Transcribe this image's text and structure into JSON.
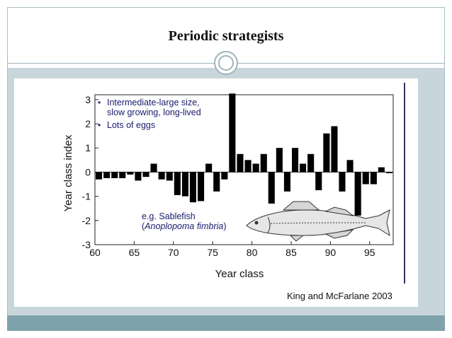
{
  "slide": {
    "title": "Periodic strategists",
    "credit": "King and McFarlane 2003"
  },
  "chart_data": {
    "type": "bar",
    "xlabel": "Year class",
    "ylabel": "Year class index",
    "xlim": [
      60,
      98
    ],
    "ylim": [
      -3,
      3.2
    ],
    "xticks": [
      "60",
      "65",
      "70",
      "75",
      "80",
      "85",
      "90",
      "95"
    ],
    "yticks": [
      "3",
      "2",
      "1",
      "0",
      "-1",
      "-2",
      "-3"
    ],
    "categories": [
      60,
      61,
      62,
      63,
      64,
      65,
      66,
      67,
      68,
      69,
      70,
      71,
      72,
      73,
      74,
      75,
      76,
      77,
      78,
      79,
      80,
      81,
      82,
      83,
      84,
      85,
      86,
      87,
      88,
      89,
      90,
      91,
      92,
      93,
      94,
      95,
      96,
      97
    ],
    "values": [
      -0.3,
      -0.25,
      -0.25,
      -0.25,
      -0.1,
      -0.35,
      -0.2,
      0.35,
      -0.3,
      -0.35,
      -0.95,
      -1.0,
      -1.25,
      -1.2,
      0.35,
      -0.8,
      -0.3,
      3.25,
      0.75,
      0.5,
      0.35,
      0.75,
      -1.3,
      1.0,
      -0.8,
      1.0,
      0.35,
      0.75,
      -0.75,
      1.6,
      1.9,
      -0.8,
      0.5,
      -1.8,
      -0.5,
      -0.5,
      0.2,
      0.0
    ],
    "annotations": {
      "bullets": [
        "Intermediate-large size,",
        "slow growing, long-lived",
        "Lots of eggs"
      ],
      "example_line1": "e.g. Sablefish",
      "example_open": "(",
      "example_species": "Anoplopoma fimbria",
      "example_close": ")"
    },
    "colors": {
      "bar": "#000000",
      "bullet": "#1a1a8c",
      "text_blue": "#1a1a6e"
    }
  },
  "icons": {
    "fish": "sablefish-illustration",
    "ornament": "circle-ornament-icon"
  }
}
